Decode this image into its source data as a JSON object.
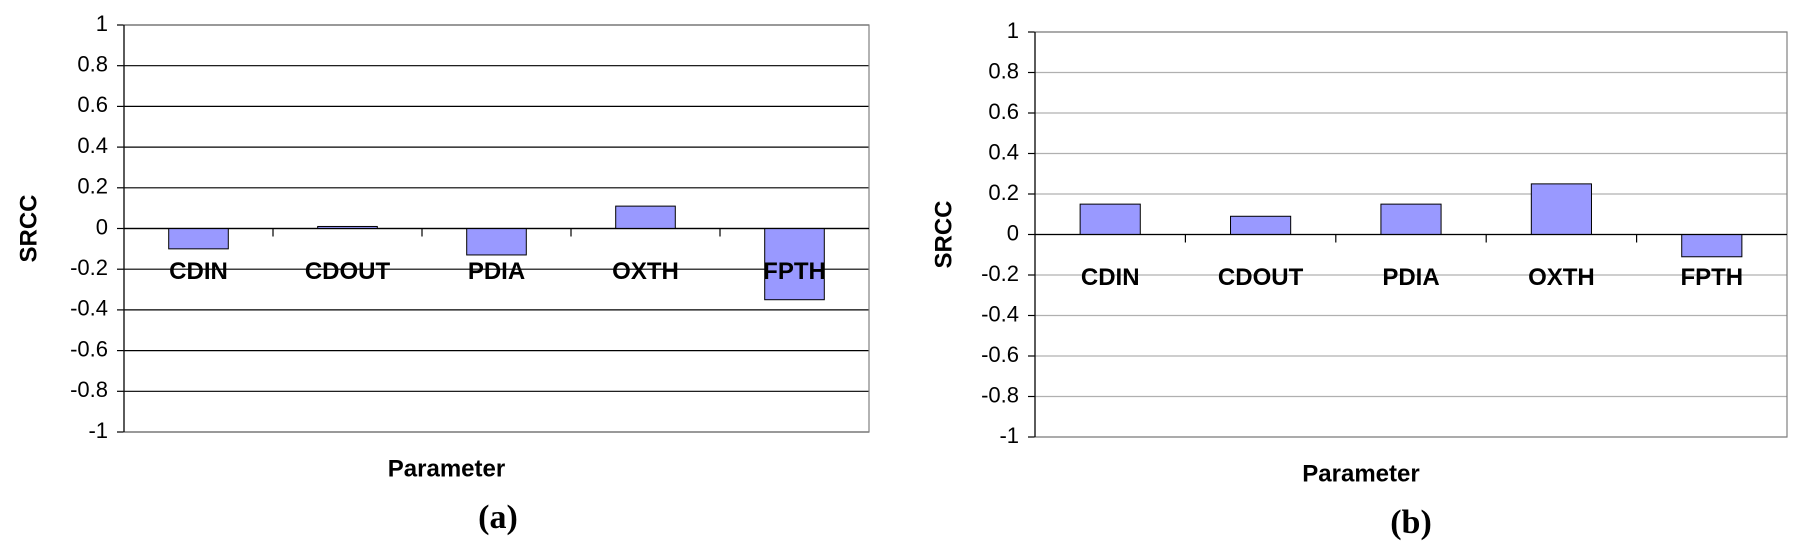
{
  "chart_data": [
    {
      "type": "bar",
      "caption": "(a)",
      "ylabel": "SRCC",
      "xlabel": "Parameter",
      "categories": [
        "CDIN",
        "CDOUT",
        "PDIA",
        "OXTH",
        "FPTH"
      ],
      "values": [
        -0.1,
        0.01,
        -0.13,
        0.11,
        -0.35
      ],
      "color": "#9999ff",
      "ylim": [
        -1,
        1
      ],
      "yticks": [
        1,
        0.8,
        0.6,
        0.4,
        0.2,
        0,
        -0.2,
        -0.4,
        -0.6,
        -0.8,
        -1
      ],
      "grid": true,
      "grid_color": "#000000"
    },
    {
      "type": "bar",
      "caption": "(b)",
      "ylabel": "SRCC",
      "xlabel": "Parameter",
      "categories": [
        "CDIN",
        "CDOUT",
        "PDIA",
        "OXTH",
        "FPTH"
      ],
      "values": [
        0.15,
        0.09,
        0.15,
        0.25,
        -0.11
      ],
      "color": "#9999ff",
      "ylim": [
        -1,
        1
      ],
      "yticks": [
        1,
        0.8,
        0.6,
        0.4,
        0.2,
        0,
        -0.2,
        -0.4,
        -0.6,
        -0.8,
        -1
      ],
      "grid": true,
      "grid_color": "#b0b0b0"
    }
  ]
}
